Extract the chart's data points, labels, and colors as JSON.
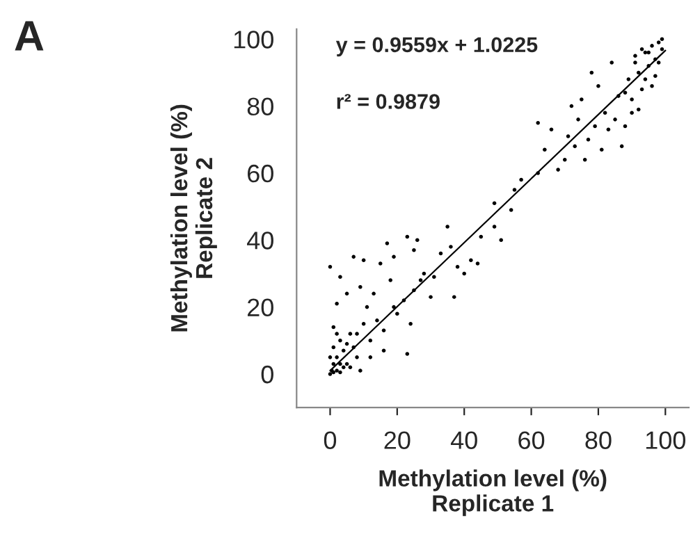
{
  "chart_data": {
    "type": "scatter",
    "xlabel": "Methylation level (%)\nReplicate 1",
    "ylabel": "Methylation level (%)\nReplicate 2",
    "annotations": [
      "A",
      "y = 0.9559x + 1.0225",
      "r² = 0.9879"
    ],
    "xlim": [
      -10,
      107
    ],
    "ylim": [
      -10,
      103
    ],
    "xticks": [
      0,
      20,
      40,
      60,
      80,
      100
    ],
    "yticks": [
      0,
      20,
      40,
      60,
      80,
      100
    ],
    "grid": false,
    "legend": false,
    "marker": "circle",
    "series": [
      {
        "color": "#000000",
        "x": [
          0,
          0.5,
          1,
          1,
          2,
          2,
          3,
          1,
          0,
          3,
          4,
          5,
          5,
          6,
          7,
          2,
          1,
          3,
          8,
          6,
          0,
          2,
          3,
          5,
          7,
          9,
          10,
          11,
          13,
          15,
          17,
          18,
          19,
          20,
          22,
          23,
          25,
          26,
          28,
          24,
          30,
          31,
          33,
          35,
          36,
          37,
          38,
          40,
          42,
          44,
          45,
          8,
          10,
          12,
          14,
          16,
          4,
          9,
          12,
          16,
          23,
          19,
          25,
          27,
          49,
          49,
          51,
          54,
          55,
          57,
          62,
          64,
          62,
          66,
          68,
          70,
          71,
          72,
          73,
          74,
          75,
          76,
          77,
          78,
          79,
          80,
          81,
          82,
          83,
          84,
          85,
          86,
          87,
          88,
          89,
          90,
          91,
          92,
          93,
          94,
          95,
          96,
          97,
          98,
          99,
          94,
          96,
          92,
          90,
          88,
          97,
          95,
          93,
          99,
          98,
          91
        ],
        "values": [
          0,
          1,
          3,
          0.5,
          1,
          5,
          3,
          8,
          5,
          10,
          7,
          9,
          3,
          12,
          8,
          12,
          14,
          0.5,
          5,
          2,
          32,
          21,
          29,
          24,
          35,
          26,
          34,
          20,
          24,
          33,
          39,
          28,
          35,
          18,
          22,
          41,
          37,
          40,
          30,
          15,
          23,
          29,
          36,
          44,
          38,
          23,
          32,
          30,
          34,
          33,
          41,
          12,
          15,
          10,
          16,
          13,
          2,
          1,
          5,
          7,
          6,
          20,
          25,
          28,
          44,
          51,
          40,
          49,
          55,
          58,
          60,
          67,
          75,
          73,
          61,
          64,
          71,
          80,
          68,
          76,
          82,
          64,
          70,
          90,
          74,
          86,
          67,
          78,
          73,
          93,
          76,
          83,
          68,
          74,
          88,
          82,
          95,
          90,
          85,
          96,
          92,
          98,
          94,
          99,
          97,
          88,
          86,
          79,
          78,
          84,
          89,
          96,
          97,
          100,
          93,
          93
        ]
      },
      {
        "type": "line",
        "marker": "none",
        "color": "#000000",
        "x": [
          0,
          100
        ],
        "values": [
          1,
          96.6
        ]
      }
    ]
  }
}
